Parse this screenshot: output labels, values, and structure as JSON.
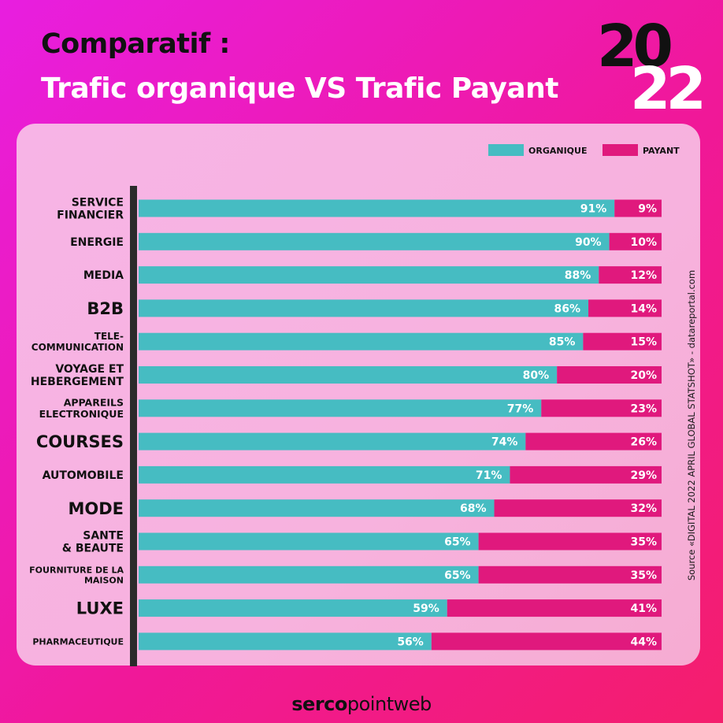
{
  "header": {
    "title_line1": "Comparatif :",
    "title_line2": "Trafic organique VS Trafic Payant",
    "year_top": "20",
    "year_bottom": "22"
  },
  "source_note": "Source «DIGITAL 2022 APRIL GLOBAL STATSHOT» - datareportal.com",
  "footer": {
    "brand_bold": "serco",
    "brand_light": "pointweb"
  },
  "colors": {
    "organique": "#46bcc2",
    "payant": "#e0197d",
    "axis": "#2b2b2b"
  },
  "chart_data": {
    "type": "bar",
    "orientation": "horizontal",
    "stacked": true,
    "percent_scale": [
      0,
      100
    ],
    "legend_position": "top-right",
    "grid": false,
    "categories": [
      [
        "SERVICE",
        "FINANCIER"
      ],
      [
        "ENERGIE"
      ],
      [
        "MEDIA"
      ],
      [
        "B2B"
      ],
      [
        "TELE-",
        "COMMUNICATION"
      ],
      [
        "VOYAGE ET",
        "HEBERGEMENT"
      ],
      [
        "APPAREILS",
        "ELECTRONIQUE"
      ],
      [
        "COURSES"
      ],
      [
        "AUTOMOBILE"
      ],
      [
        "MODE"
      ],
      [
        "SANTE",
        "& BEAUTE"
      ],
      [
        "FOURNITURE DE LA",
        "MAISON"
      ],
      [
        "LUXE"
      ],
      [
        "PHARMACEUTIQUE"
      ]
    ],
    "series": [
      {
        "name": "ORGANIQUE",
        "values": [
          91,
          90,
          88,
          86,
          85,
          80,
          77,
          74,
          71,
          68,
          65,
          65,
          59,
          56
        ],
        "labels": [
          "91%",
          "90%",
          "88%",
          "86%",
          "85%",
          "80%",
          "77%",
          "74%",
          "71%",
          "68%",
          "65%",
          "65%",
          "59%",
          "56%"
        ]
      },
      {
        "name": "PAYANT",
        "values": [
          9,
          10,
          12,
          14,
          15,
          20,
          23,
          26,
          29,
          32,
          35,
          35,
          41,
          44
        ],
        "labels": [
          "9%",
          "10%",
          "12%",
          "14%",
          "15%",
          "20%",
          "23%",
          "26%",
          "29%",
          "32%",
          "35%",
          "35%",
          "41%",
          "44%"
        ]
      }
    ]
  }
}
